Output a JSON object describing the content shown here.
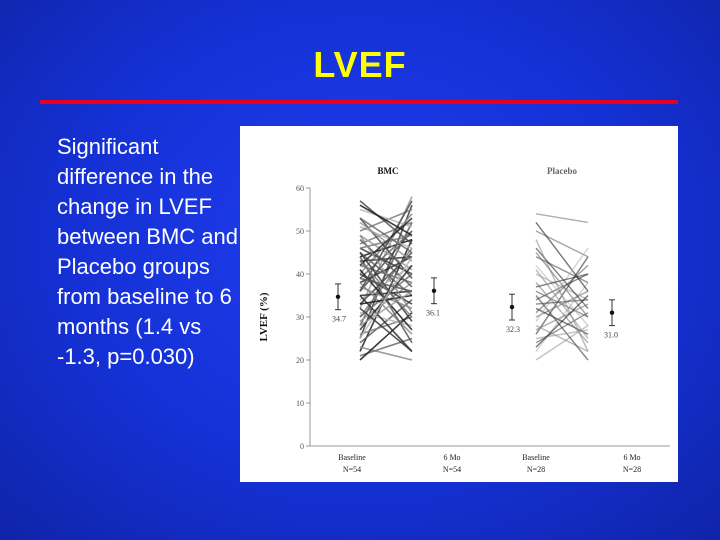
{
  "slide": {
    "title": "LVEF",
    "bullet": "Significant difference in the change in LVEF between BMC and Placebo groups from baseline to 6 months (1.4 vs -1.3, p=0.030)"
  },
  "colors": {
    "background": "#1531d6",
    "title": "#ffff00",
    "rule": "#e8001c",
    "text": "#ffffff"
  },
  "chart_data": {
    "type": "line",
    "ylabel": "LVEF (%)",
    "ylim": [
      0,
      60
    ],
    "yticks": [
      0,
      10,
      20,
      30,
      40,
      50,
      60
    ],
    "grid": false,
    "panels": [
      {
        "name": "BMC",
        "baseline_label": "Baseline",
        "baseline_n": "N=54",
        "followup_label": "6 Mo",
        "followup_n": "N=54",
        "baseline_mean": 34.7,
        "baseline_mean_label": "34.7",
        "followup_mean": 36.1,
        "followup_mean_label": "36.1",
        "baseline_err": 3,
        "followup_err": 3,
        "pairs": [
          [
            22,
            48
          ],
          [
            25,
            56
          ],
          [
            28,
            52
          ],
          [
            30,
            46
          ],
          [
            32,
            58
          ],
          [
            34,
            42
          ],
          [
            36,
            50
          ],
          [
            38,
            44
          ],
          [
            40,
            54
          ],
          [
            42,
            38
          ],
          [
            44,
            48
          ],
          [
            46,
            40
          ],
          [
            24,
            34
          ],
          [
            26,
            30
          ],
          [
            29,
            38
          ],
          [
            31,
            28
          ],
          [
            33,
            45
          ],
          [
            35,
            36
          ],
          [
            37,
            32
          ],
          [
            39,
            50
          ],
          [
            41,
            27
          ],
          [
            43,
            44
          ],
          [
            45,
            35
          ],
          [
            47,
            52
          ],
          [
            49,
            41
          ],
          [
            51,
            46
          ],
          [
            53,
            39
          ],
          [
            27,
            42
          ],
          [
            23,
            20
          ],
          [
            21,
            25
          ],
          [
            20,
            31
          ],
          [
            45,
            29
          ],
          [
            48,
            37
          ],
          [
            50,
            55
          ],
          [
            52,
            43
          ],
          [
            55,
            51
          ],
          [
            57,
            47
          ],
          [
            35,
            22
          ],
          [
            38,
            26
          ],
          [
            30,
            40
          ],
          [
            33,
            35
          ],
          [
            40,
            33
          ],
          [
            44,
            24
          ],
          [
            46,
            49
          ],
          [
            28,
            36
          ],
          [
            25,
            44
          ],
          [
            36,
            57
          ],
          [
            42,
            53
          ],
          [
            49,
            31
          ],
          [
            53,
            45
          ],
          [
            56,
            49
          ],
          [
            32,
            22
          ],
          [
            39,
            36
          ],
          [
            43,
            30
          ]
        ]
      },
      {
        "name": "Placebo",
        "baseline_label": "Baseline",
        "baseline_n": "N=28",
        "followup_label": "6 Mo",
        "followup_n": "N=28",
        "baseline_mean": 32.3,
        "baseline_mean_label": "32.3",
        "followup_mean": 31.0,
        "followup_mean_label": "31.0",
        "baseline_err": 3,
        "followup_err": 3,
        "pairs": [
          [
            54,
            52
          ],
          [
            20,
            28
          ],
          [
            22,
            38
          ],
          [
            24,
            31
          ],
          [
            26,
            44
          ],
          [
            28,
            22
          ],
          [
            30,
            36
          ],
          [
            32,
            26
          ],
          [
            34,
            40
          ],
          [
            36,
            30
          ],
          [
            38,
            24
          ],
          [
            40,
            34
          ],
          [
            42,
            28
          ],
          [
            44,
            38
          ],
          [
            46,
            32
          ],
          [
            48,
            22
          ],
          [
            50,
            44
          ],
          [
            52,
            36
          ],
          [
            35,
            20
          ],
          [
            31,
            42
          ],
          [
            27,
            33
          ],
          [
            25,
            27
          ],
          [
            29,
            46
          ],
          [
            33,
            34
          ],
          [
            37,
            40
          ],
          [
            41,
            25
          ],
          [
            45,
            30
          ],
          [
            23,
            35
          ]
        ]
      }
    ]
  }
}
